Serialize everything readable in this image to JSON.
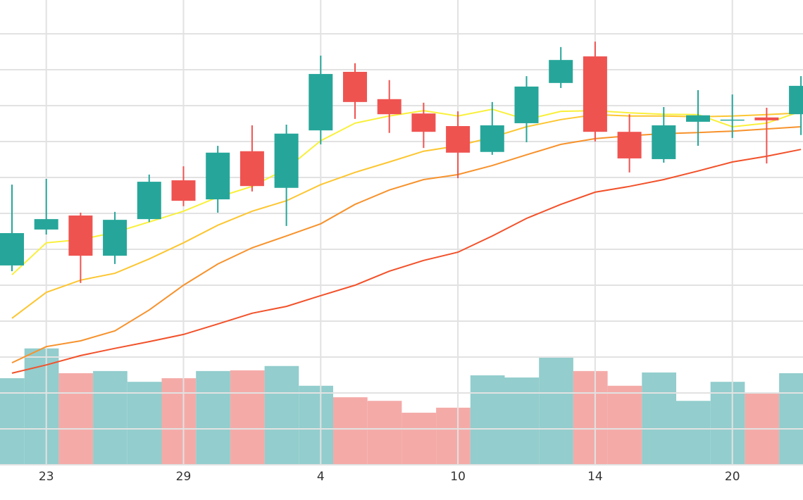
{
  "chart_data": {
    "type": "candlestick",
    "categories": [
      null,
      "23",
      null,
      null,
      null,
      "29",
      null,
      null,
      null,
      "4",
      null,
      null,
      null,
      "10",
      null,
      null,
      null,
      "14",
      null,
      null,
      null,
      "20",
      null,
      null
    ],
    "open": [
      55.5,
      65.5,
      69.4,
      58.2,
      68.4,
      79.2,
      73.9,
      87.3,
      77.1,
      93.1,
      109.4,
      101.8,
      97.8,
      94.3,
      87.1,
      95.1,
      106.3,
      113.7,
      92.7,
      85.1,
      95.5,
      95.9,
      96.7,
      97.6
    ],
    "high": [
      78.0,
      79.6,
      70.2,
      70.4,
      80.8,
      83.1,
      88.8,
      94.5,
      94.7,
      113.9,
      111.8,
      107.1,
      100.8,
      98.4,
      101.0,
      108.2,
      116.3,
      117.8,
      97.6,
      99.6,
      104.3,
      103.1,
      99.4,
      108.2
    ],
    "low": [
      53.9,
      64.1,
      50.6,
      55.9,
      67.6,
      72.0,
      70.2,
      76.1,
      66.5,
      89.2,
      96.3,
      92.4,
      88.2,
      79.8,
      86.3,
      89.8,
      104.9,
      90.0,
      81.4,
      84.1,
      88.8,
      91.0,
      83.9,
      91.8
    ],
    "close": [
      64.5,
      68.4,
      58.2,
      68.2,
      78.8,
      73.5,
      86.9,
      77.6,
      92.2,
      108.8,
      101.0,
      97.6,
      92.7,
      86.9,
      94.5,
      105.3,
      112.7,
      92.7,
      85.3,
      94.5,
      97.3,
      96.1,
      95.9,
      105.5
    ],
    "volume": [
      24.1,
      32.4,
      25.5,
      26.1,
      23.1,
      24.1,
      26.1,
      26.3,
      27.5,
      22.0,
      18.8,
      17.8,
      14.5,
      15.9,
      24.9,
      24.3,
      30.2,
      26.1,
      22.0,
      25.7,
      17.8,
      23.1,
      20.0,
      25.5
    ],
    "up_color": "#26a69a",
    "down_color": "#ef5350",
    "volume_up_color": "#93cdcd",
    "volume_down_color": "#f4aba8",
    "moving_averages": [
      {
        "color": "#f9f03a",
        "values": [
          52.9,
          61.8,
          62.7,
          64.7,
          67.6,
          70.6,
          74.5,
          77.5,
          82.4,
          90.2,
          95.1,
          97.1,
          98.6,
          97.1,
          99.0,
          96.1,
          98.4,
          98.6,
          98.0,
          97.6,
          97.5,
          94.1,
          95.1,
          98.4
        ]
      },
      {
        "color": "#fcc631",
        "values": [
          40.8,
          48.0,
          51.4,
          53.3,
          57.3,
          61.8,
          66.7,
          70.6,
          73.5,
          78.0,
          81.4,
          84.3,
          87.3,
          88.8,
          91.2,
          94.1,
          96.1,
          97.5,
          97.1,
          97.1,
          96.9,
          97.1,
          97.5,
          98.0
        ]
      },
      {
        "color": "#f7922c",
        "values": [
          28.4,
          32.9,
          34.5,
          37.3,
          43.1,
          50.0,
          55.9,
          60.4,
          63.7,
          67.1,
          72.5,
          76.5,
          79.4,
          80.8,
          83.3,
          86.3,
          89.2,
          90.8,
          91.6,
          92.2,
          92.5,
          92.9,
          93.5,
          94.1
        ]
      },
      {
        "color": "#f2512a",
        "values": [
          25.5,
          27.8,
          30.4,
          32.4,
          34.3,
          36.3,
          39.2,
          42.2,
          44.1,
          47.1,
          50.0,
          53.9,
          56.9,
          59.2,
          63.7,
          68.6,
          72.5,
          75.9,
          77.5,
          79.4,
          81.8,
          84.3,
          85.9,
          87.8
        ]
      }
    ],
    "ylim": [
      0,
      129.4
    ],
    "yticks": [
      0,
      10,
      20,
      30,
      40,
      50,
      60,
      70,
      80,
      90,
      100,
      110,
      120
    ],
    "grid": true
  }
}
